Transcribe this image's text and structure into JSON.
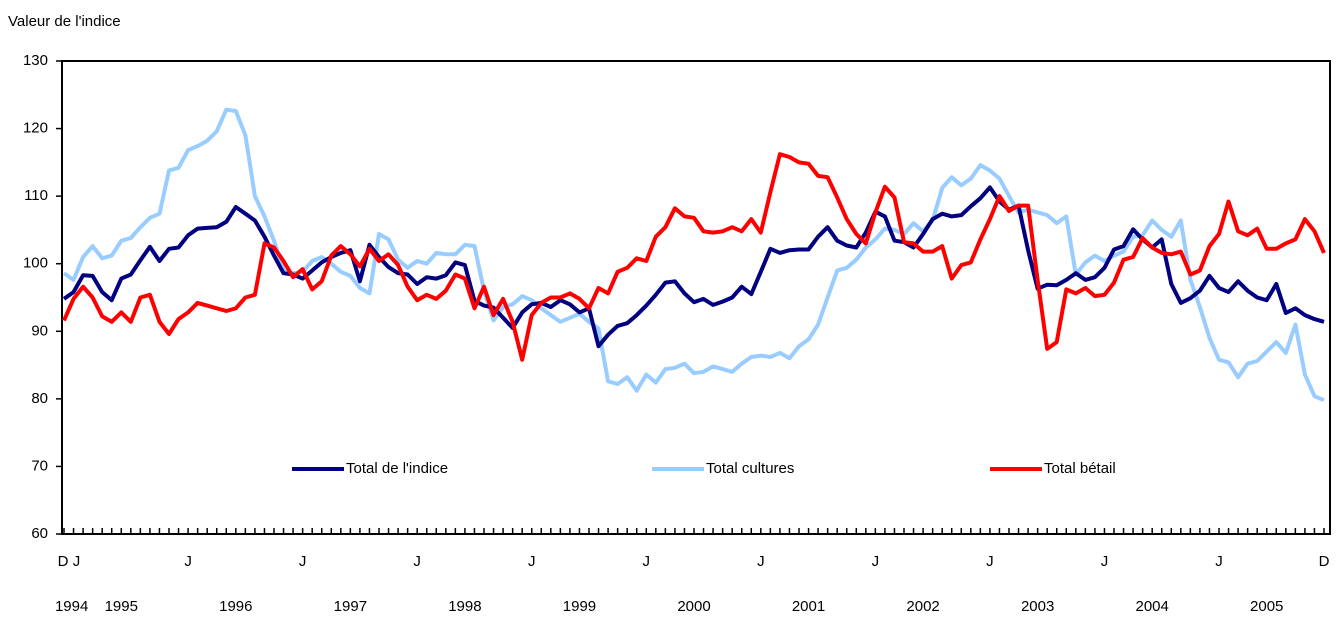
{
  "chart_data": {
    "type": "line",
    "y_label": "Valeur de l'indice",
    "categories": [
      "D",
      "J",
      null,
      null,
      null,
      null,
      null,
      null,
      null,
      null,
      null,
      null,
      null,
      "J",
      null,
      null,
      null,
      null,
      null,
      null,
      null,
      null,
      null,
      null,
      null,
      "J",
      null,
      null,
      null,
      null,
      null,
      null,
      null,
      null,
      null,
      null,
      null,
      "J",
      null,
      null,
      null,
      null,
      null,
      null,
      null,
      null,
      null,
      null,
      null,
      "J",
      null,
      null,
      null,
      null,
      null,
      null,
      null,
      null,
      null,
      null,
      null,
      "J",
      null,
      null,
      null,
      null,
      null,
      null,
      null,
      null,
      null,
      null,
      null,
      "J",
      null,
      null,
      null,
      null,
      null,
      null,
      null,
      null,
      null,
      null,
      null,
      "J",
      null,
      null,
      null,
      null,
      null,
      null,
      null,
      null,
      null,
      null,
      null,
      "J",
      null,
      null,
      null,
      null,
      null,
      null,
      null,
      null,
      null,
      null,
      null,
      "J",
      null,
      null,
      null,
      null,
      null,
      null,
      null,
      null,
      null,
      null,
      null,
      "J",
      null,
      null,
      null,
      null,
      null,
      null,
      null,
      null,
      null,
      null,
      "D"
    ],
    "years": [
      "1994",
      "1995",
      "1996",
      "1997",
      "1998",
      "1999",
      "2000",
      "2001",
      "2002",
      "2003",
      "2004",
      "2005"
    ],
    "ylim": [
      60,
      130
    ],
    "yticks": [
      60,
      70,
      80,
      90,
      100,
      110,
      120,
      130
    ],
    "grid": false,
    "legend": "bottom",
    "series": [
      {
        "name": "Total de l'indice",
        "color": "#000080",
        "values": [
          94.8,
          95.8,
          98.3,
          98.2,
          95.8,
          94.6,
          97.8,
          98.4,
          100.5,
          102.5,
          100.4,
          102.2,
          102.4,
          104.2,
          105.2,
          105.3,
          105.4,
          106.2,
          108.4,
          107.4,
          106.4,
          104.0,
          101.2,
          98.6,
          98.4,
          97.8,
          99.0,
          100.2,
          101.0,
          101.6,
          102.0,
          97.4,
          102.8,
          101.0,
          99.5,
          98.6,
          98.4,
          97.0,
          98.0,
          97.8,
          98.3,
          100.2,
          99.8,
          94.5,
          93.8,
          93.5,
          92.0,
          90.5,
          92.8,
          94.0,
          94.2,
          93.6,
          94.6,
          94.0,
          92.8,
          93.4,
          87.8,
          89.5,
          90.8,
          91.2,
          92.4,
          93.8,
          95.4,
          97.2,
          97.4,
          95.6,
          94.3,
          94.8,
          93.9,
          94.4,
          95.0,
          96.6,
          95.5,
          98.8,
          102.2,
          101.6,
          102.0,
          102.1,
          102.1,
          104.0,
          105.4,
          103.4,
          102.7,
          102.4,
          104.6,
          107.7,
          107.0,
          103.4,
          103.2,
          102.4,
          104.4,
          106.6,
          107.4,
          107.0,
          107.2,
          108.5,
          109.7,
          111.3,
          109.2,
          108.0,
          108.6,
          102.0,
          96.3,
          96.9,
          96.8,
          97.6,
          98.6,
          97.6,
          98.0,
          99.4,
          102.1,
          102.6,
          105.1,
          103.6,
          102.4,
          103.6,
          97.0,
          94.2,
          94.9,
          96.0,
          98.2,
          96.4,
          95.8,
          97.4,
          96.0,
          95.0,
          94.6,
          97.0,
          92.7,
          93.4,
          92.4,
          91.8,
          91.4
        ]
      },
      {
        "name": "Total cultures",
        "color": "#99ccff",
        "values": [
          98.6,
          97.6,
          101.0,
          102.6,
          100.8,
          101.2,
          103.4,
          103.8,
          105.4,
          106.8,
          107.4,
          113.8,
          114.2,
          116.8,
          117.4,
          118.2,
          119.6,
          122.8,
          122.6,
          119.0,
          110.0,
          107.0,
          103.4,
          99.0,
          98.6,
          98.8,
          100.4,
          101.0,
          100.0,
          98.8,
          98.2,
          96.4,
          95.6,
          104.4,
          103.6,
          100.6,
          99.4,
          100.4,
          100.0,
          101.6,
          101.4,
          101.4,
          102.8,
          102.6,
          96.0,
          91.6,
          93.6,
          94.0,
          95.2,
          94.6,
          93.4,
          92.4,
          91.4,
          92.0,
          92.6,
          91.4,
          90.4,
          82.6,
          82.2,
          83.2,
          81.2,
          83.6,
          82.4,
          84.4,
          84.6,
          85.2,
          83.8,
          84.0,
          84.8,
          84.4,
          84.0,
          85.2,
          86.2,
          86.4,
          86.2,
          86.8,
          86.0,
          87.8,
          88.8,
          91.0,
          95.0,
          99.0,
          99.4,
          100.6,
          102.4,
          103.6,
          105.2,
          105.0,
          104.4,
          106.0,
          104.8,
          106.4,
          111.2,
          112.8,
          111.6,
          112.6,
          114.6,
          113.8,
          112.6,
          110.0,
          107.6,
          108.0,
          107.6,
          107.2,
          106.0,
          107.0,
          98.4,
          100.2,
          101.2,
          100.4,
          101.2,
          101.8,
          104.0,
          104.2,
          106.4,
          105.0,
          104.0,
          106.4,
          97.6,
          93.6,
          89.0,
          85.8,
          85.4,
          83.2,
          85.2,
          85.6,
          87.0,
          88.4,
          86.8,
          91.0,
          83.6,
          80.4,
          79.8
        ]
      },
      {
        "name": "Total bétail",
        "color": "#ff0000",
        "values": [
          91.6,
          94.8,
          96.6,
          95.0,
          92.2,
          91.4,
          92.8,
          91.4,
          95.0,
          95.4,
          91.4,
          89.6,
          91.8,
          92.8,
          94.2,
          93.8,
          93.4,
          93.0,
          93.4,
          95.0,
          95.4,
          103.0,
          102.4,
          100.4,
          98.0,
          99.2,
          96.2,
          97.4,
          101.2,
          102.6,
          101.4,
          99.6,
          102.2,
          100.4,
          101.4,
          99.8,
          96.6,
          94.6,
          95.4,
          94.8,
          96.0,
          98.4,
          97.8,
          93.4,
          96.6,
          92.4,
          94.8,
          91.4,
          85.8,
          92.4,
          94.2,
          95.0,
          95.0,
          95.6,
          94.8,
          93.4,
          96.4,
          95.6,
          98.8,
          99.4,
          100.8,
          100.4,
          104.0,
          105.4,
          108.2,
          107.0,
          106.8,
          104.8,
          104.6,
          104.8,
          105.4,
          104.8,
          106.6,
          104.6,
          110.6,
          116.2,
          115.8,
          115.0,
          114.8,
          113.0,
          112.8,
          109.8,
          106.6,
          104.4,
          103.0,
          107.6,
          111.4,
          109.8,
          103.2,
          103.0,
          101.8,
          101.8,
          102.6,
          97.8,
          99.8,
          100.2,
          103.6,
          106.6,
          110.0,
          107.8,
          108.6,
          108.6,
          97.6,
          87.4,
          88.4,
          96.2,
          95.6,
          96.4,
          95.2,
          95.4,
          97.2,
          100.6,
          101.0,
          103.8,
          102.4,
          101.6,
          101.4,
          101.8,
          98.4,
          99.0,
          102.6,
          104.4,
          109.2,
          104.8,
          104.2,
          105.2,
          102.2,
          102.2,
          103.0,
          103.6,
          106.6,
          104.8,
          101.6
        ]
      }
    ]
  }
}
